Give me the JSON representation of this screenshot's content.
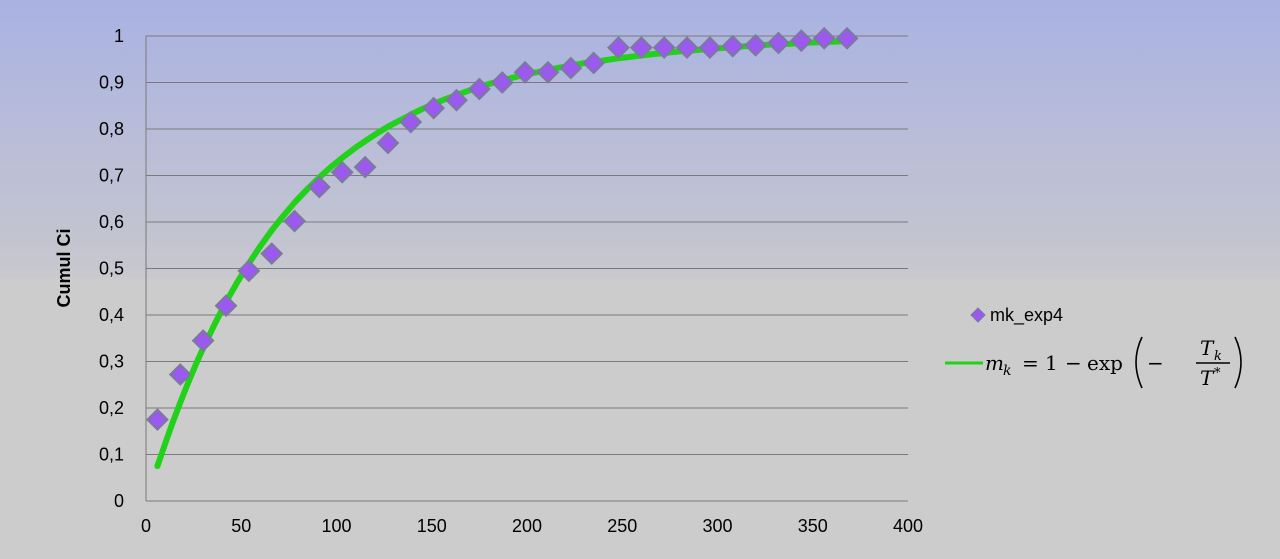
{
  "colors": {
    "marker_fill": "#9b59f0",
    "marker_stroke": "#7a7a9a",
    "fit_line": "#22d21a"
  },
  "chart_data": {
    "type": "scatter",
    "xlabel": "",
    "ylabel": "Cumul Ci",
    "xlim": [
      0,
      400
    ],
    "ylim": [
      0,
      1
    ],
    "x_ticks": [
      "0",
      "50",
      "100",
      "150",
      "200",
      "250",
      "300",
      "350",
      "400"
    ],
    "y_ticks": [
      "0",
      "0,1",
      "0,2",
      "0,3",
      "0,4",
      "0,5",
      "0,6",
      "0,7",
      "0,8",
      "0,9",
      "1"
    ],
    "grid": true,
    "legend_position": "right",
    "series": [
      {
        "name": "mk_exp4",
        "kind": "markers",
        "marker": "diamond",
        "x": [
          6,
          18,
          30,
          42,
          54,
          66,
          78,
          91,
          103,
          115,
          127,
          139,
          151,
          163,
          175,
          187,
          199,
          211,
          223,
          235,
          248,
          260,
          272,
          284,
          296,
          308,
          320,
          332,
          344,
          356,
          368
        ],
        "y": [
          0.175,
          0.272,
          0.345,
          0.42,
          0.495,
          0.532,
          0.602,
          0.675,
          0.707,
          0.718,
          0.77,
          0.815,
          0.845,
          0.862,
          0.886,
          0.9,
          0.922,
          0.922,
          0.931,
          0.942,
          0.975,
          0.975,
          0.975,
          0.975,
          0.975,
          0.978,
          0.98,
          0.985,
          0.99,
          0.995,
          0.995
        ]
      },
      {
        "name": "m_k = 1 − exp(−T_k / T*)",
        "kind": "line",
        "x": [
          6,
          10,
          14,
          18,
          22,
          26,
          30,
          36,
          42,
          48,
          54,
          60,
          66,
          72,
          78,
          85,
          91,
          97,
          103,
          110,
          115,
          121,
          127,
          133,
          139,
          145,
          151,
          157,
          163,
          169,
          175,
          181,
          187,
          193,
          199,
          205,
          211,
          217,
          223,
          229,
          235,
          241,
          248,
          254,
          260,
          266,
          272,
          278,
          284,
          290,
          296,
          302,
          308,
          314,
          320,
          326,
          332,
          338,
          344,
          350,
          356,
          362,
          368
        ],
        "y": [
          0.075,
          0.123,
          0.169,
          0.212,
          0.253,
          0.292,
          0.329,
          0.38,
          0.428,
          0.471,
          0.511,
          0.548,
          0.582,
          0.613,
          0.642,
          0.672,
          0.696,
          0.718,
          0.738,
          0.76,
          0.774,
          0.79,
          0.805,
          0.818,
          0.831,
          0.843,
          0.854,
          0.864,
          0.873,
          0.882,
          0.89,
          0.898,
          0.904,
          0.911,
          0.917,
          0.922,
          0.927,
          0.932,
          0.936,
          0.941,
          0.944,
          0.948,
          0.952,
          0.955,
          0.958,
          0.961,
          0.963,
          0.966,
          0.968,
          0.97,
          0.972,
          0.974,
          0.976,
          0.978,
          0.979,
          0.981,
          0.982,
          0.983,
          0.985,
          0.986,
          0.987,
          0.988,
          0.989
        ]
      }
    ]
  },
  "legend": {
    "marker_label": "mk_exp4",
    "formula": {
      "m": "m",
      "k": "k",
      "equals": "=",
      "one": "1",
      "minus": "−",
      "exp": "exp",
      "neg": "−",
      "T": "T",
      "star": "*"
    }
  }
}
